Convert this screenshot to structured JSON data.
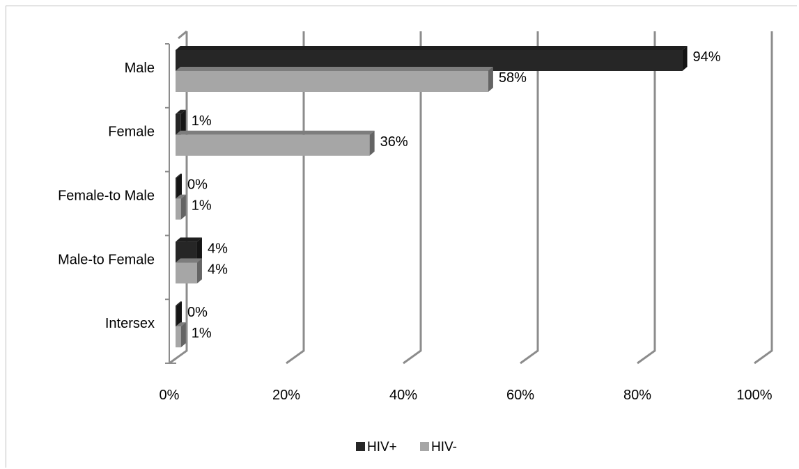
{
  "chart_data": {
    "type": "bar",
    "orientation": "horizontal",
    "style": "3d-clustered",
    "categories": [
      "Male",
      "Female",
      "Female-to Male",
      "Male-to Female",
      "Intersex"
    ],
    "series": [
      {
        "name": "HIV+",
        "values": [
          94,
          1,
          0,
          4,
          0
        ],
        "labels": [
          "94%",
          "1%",
          "0%",
          "4%",
          "0%"
        ],
        "color": "#262626"
      },
      {
        "name": "HIV-",
        "values": [
          58,
          36,
          1,
          4,
          1
        ],
        "labels": [
          "58%",
          "36%",
          "1%",
          "4%",
          "1%"
        ],
        "color": "#a6a6a6"
      }
    ],
    "xlim": [
      0,
      100
    ],
    "x_ticks": [
      "0%",
      "20%",
      "40%",
      "60%",
      "80%",
      "100%"
    ],
    "grid": true,
    "legend_position": "bottom"
  }
}
